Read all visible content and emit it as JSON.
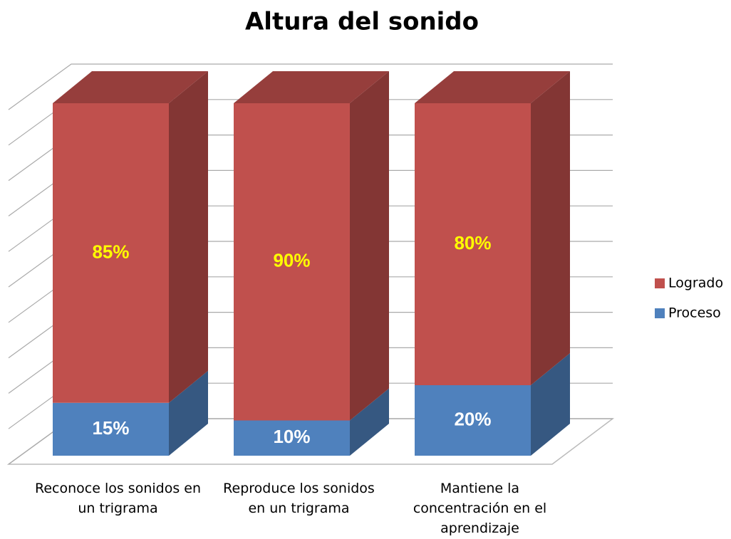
{
  "chart_data": {
    "type": "bar3d_stacked",
    "title": "Altura del sonido",
    "categories": [
      "Reconoce los sonidos en un trigrama",
      "Reproduce los sonidos en un trigrama",
      "Mantiene la concentración en el aprendizaje"
    ],
    "series": [
      {
        "name": "Proceso",
        "color": "#4f81bd",
        "values": [
          15,
          10,
          20
        ],
        "value_labels": [
          "15%",
          "10%",
          "20%"
        ],
        "label_color": "#ffffff"
      },
      {
        "name": "Logrado",
        "color": "#c0504d",
        "values": [
          85,
          90,
          80
        ],
        "value_labels": [
          "85%",
          "90%",
          "80%"
        ],
        "label_color": "#ffff00"
      }
    ],
    "ylim": [
      0,
      100
    ],
    "yticks": [
      0,
      10,
      20,
      30,
      40,
      50,
      60,
      70,
      80,
      90,
      100
    ],
    "ytick_labels": false,
    "grid": true,
    "legend": "right"
  }
}
